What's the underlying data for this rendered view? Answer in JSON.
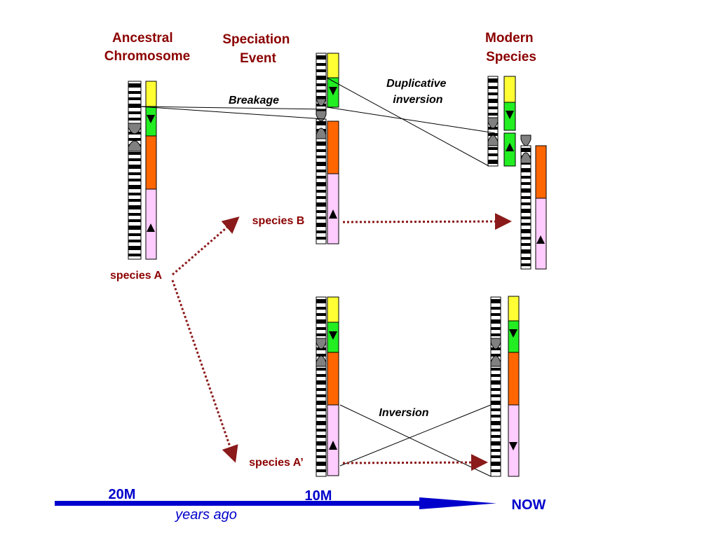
{
  "headers": {
    "ancestral": [
      "Ancestral",
      "Chromosome"
    ],
    "speciation": [
      "Speciation",
      "Event"
    ],
    "modern": [
      "Modern",
      "Species"
    ]
  },
  "species": {
    "a": "species A",
    "b": "species B",
    "a_prime": "species A’"
  },
  "events": {
    "breakage": "Breakage",
    "duplicative_inversion": [
      "Duplicative",
      "inversion"
    ],
    "inversion": "Inversion"
  },
  "timeline": {
    "start": "20M",
    "middle": "10M",
    "end": "NOW",
    "caption": "years ago"
  },
  "colors": {
    "yellow": "#ffff33",
    "green": "#22ee22",
    "orange": "#ff6600",
    "pink": "#ffccff",
    "species_text": "#8b0000",
    "species_arrow": "#8b1a1a",
    "timeline": "#0000cc",
    "centromere": "#808080"
  }
}
